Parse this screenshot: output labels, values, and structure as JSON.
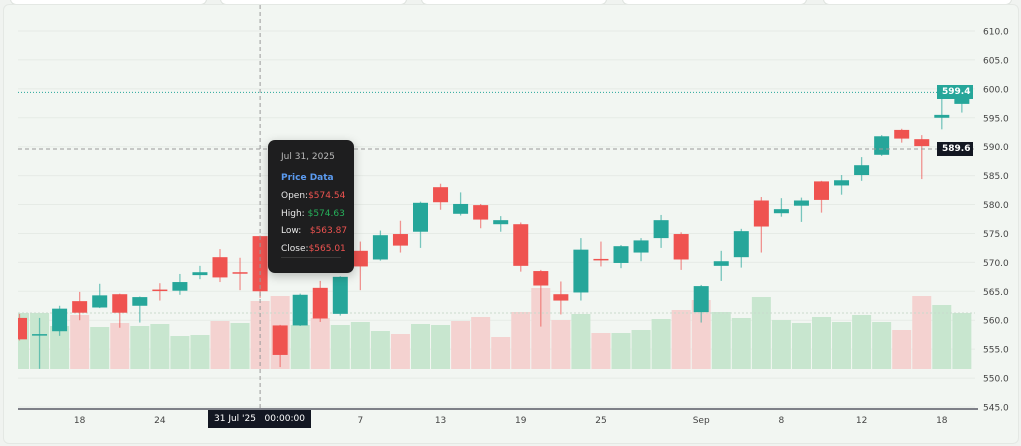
{
  "chart_data": {
    "type": "candlestick",
    "title": "",
    "ylim": [
      545,
      610
    ],
    "yticks": [
      545,
      550,
      555,
      560,
      565,
      570,
      575,
      580,
      585,
      590,
      595,
      600,
      605,
      610
    ],
    "grid": true,
    "xticks": [
      {
        "label": "18",
        "date": "2025-07-18"
      },
      {
        "label": "24",
        "date": "2025-07-24"
      },
      {
        "label": "7",
        "date": "2025-08-07"
      },
      {
        "label": "13",
        "date": "2025-08-13"
      },
      {
        "label": "19",
        "date": "2025-08-19"
      },
      {
        "label": "25",
        "date": "2025-08-25"
      },
      {
        "label": "Sep",
        "date": "2025-09-02"
      },
      {
        "label": "8",
        "date": "2025-09-08"
      },
      {
        "label": "12",
        "date": "2025-09-12"
      },
      {
        "label": "18",
        "date": "2025-09-18"
      }
    ],
    "columns": [
      "date",
      "open",
      "high",
      "low",
      "close",
      "volume_relative",
      "volume_color"
    ],
    "candles": [
      [
        "2025-07-15",
        560.4,
        561.1,
        556.5,
        556.7,
        56,
        "up"
      ],
      [
        "2025-07-16",
        557.5,
        560.4,
        551.6,
        557.6,
        56,
        "up"
      ],
      [
        "2025-07-17",
        558.1,
        562.5,
        557.3,
        562.0,
        43,
        "up"
      ],
      [
        "2025-07-18",
        563.3,
        564.9,
        560.0,
        561.3,
        54,
        "down"
      ],
      [
        "2025-07-21",
        562.2,
        566.3,
        562.1,
        564.3,
        42,
        "up"
      ],
      [
        "2025-07-22",
        564.5,
        564.6,
        558.7,
        561.3,
        46,
        "down"
      ],
      [
        "2025-07-23",
        562.5,
        564.1,
        559.6,
        564.0,
        43,
        "up"
      ],
      [
        "2025-07-24",
        565.3,
        566.4,
        563.4,
        565.1,
        45,
        "up"
      ],
      [
        "2025-07-25",
        565.1,
        568.0,
        564.4,
        566.6,
        33,
        "up"
      ],
      [
        "2025-07-28",
        567.8,
        569.4,
        567.1,
        568.3,
        34,
        "up"
      ],
      [
        "2025-07-29",
        570.9,
        572.3,
        566.6,
        567.4,
        48,
        "down"
      ],
      [
        "2025-07-30",
        568.3,
        570.8,
        565.2,
        568.1,
        46,
        "up"
      ],
      [
        "2025-07-31",
        574.54,
        574.63,
        563.87,
        565.01,
        68,
        "down"
      ],
      [
        "2025-08-01",
        559.1,
        559.2,
        551.9,
        554.0,
        73,
        "down"
      ],
      [
        "2025-08-04",
        559.1,
        564.6,
        559.0,
        564.4,
        44,
        "up"
      ],
      [
        "2025-08-05",
        565.6,
        566.8,
        559.7,
        560.3,
        51,
        "down"
      ],
      [
        "2025-08-06",
        561.1,
        567.6,
        560.8,
        567.5,
        44,
        "up"
      ],
      [
        "2025-08-07",
        572.0,
        573.6,
        565.2,
        569.3,
        47,
        "up"
      ],
      [
        "2025-08-08",
        570.5,
        575.5,
        570.3,
        574.7,
        38,
        "up"
      ],
      [
        "2025-08-11",
        574.9,
        577.2,
        571.7,
        572.9,
        35,
        "down"
      ],
      [
        "2025-08-12",
        575.3,
        580.5,
        572.5,
        580.3,
        45,
        "up"
      ],
      [
        "2025-08-13",
        583.0,
        583.6,
        579.1,
        580.4,
        44,
        "up"
      ],
      [
        "2025-08-14",
        578.4,
        582.1,
        578.1,
        580.1,
        48,
        "down"
      ],
      [
        "2025-08-15",
        579.9,
        580.1,
        575.9,
        577.4,
        52,
        "down"
      ],
      [
        "2025-08-18",
        576.6,
        578.0,
        575.3,
        577.3,
        32,
        "down"
      ],
      [
        "2025-08-19",
        576.6,
        576.9,
        568.4,
        569.4,
        57,
        "down"
      ],
      [
        "2025-08-20",
        568.5,
        568.7,
        558.9,
        566.0,
        81,
        "down"
      ],
      [
        "2025-08-21",
        564.5,
        566.7,
        561.0,
        563.4,
        49,
        "down"
      ],
      [
        "2025-08-22",
        564.8,
        574.2,
        563.4,
        572.2,
        55,
        "up"
      ],
      [
        "2025-08-25",
        570.6,
        573.6,
        569.3,
        570.5,
        36,
        "down"
      ],
      [
        "2025-08-26",
        569.9,
        573.0,
        569.0,
        572.8,
        36,
        "up"
      ],
      [
        "2025-08-27",
        571.7,
        574.2,
        570.2,
        573.8,
        39,
        "up"
      ],
      [
        "2025-08-28",
        574.2,
        578.2,
        572.5,
        577.3,
        50,
        "up"
      ],
      [
        "2025-08-29",
        574.9,
        575.2,
        568.7,
        570.5,
        59,
        "down"
      ],
      [
        "2025-09-02",
        561.4,
        566.1,
        559.6,
        565.9,
        69,
        "down"
      ],
      [
        "2025-09-03",
        569.4,
        572.0,
        566.8,
        570.2,
        57,
        "up"
      ],
      [
        "2025-09-04",
        570.9,
        575.8,
        569.1,
        575.4,
        51,
        "up"
      ],
      [
        "2025-09-05",
        580.7,
        581.3,
        571.7,
        576.2,
        72,
        "up"
      ],
      [
        "2025-09-08",
        578.5,
        581.1,
        577.9,
        579.2,
        49,
        "up"
      ],
      [
        "2025-09-09",
        579.8,
        581.2,
        577.0,
        580.7,
        46,
        "up"
      ],
      [
        "2025-09-10",
        584.0,
        584.1,
        578.6,
        580.8,
        52,
        "up"
      ],
      [
        "2025-09-11",
        583.3,
        585.1,
        581.7,
        584.2,
        47,
        "up"
      ],
      [
        "2025-09-12",
        585.1,
        588.2,
        584.1,
        586.8,
        54,
        "up"
      ],
      [
        "2025-09-15",
        588.6,
        592.0,
        588.4,
        591.8,
        47,
        "up"
      ],
      [
        "2025-09-16",
        592.9,
        593.1,
        590.7,
        591.4,
        39,
        "down"
      ],
      [
        "2025-09-17",
        591.3,
        592.0,
        584.4,
        590.1,
        73,
        "down"
      ],
      [
        "2025-09-18",
        595.0,
        598.4,
        593.0,
        595.5,
        64,
        "up"
      ],
      [
        "2025-09-19",
        597.4,
        600.3,
        595.9,
        599.4,
        56,
        "up"
      ]
    ],
    "last_price": {
      "value": 599.4,
      "label": "599.4"
    },
    "crosshair": {
      "date": "2025-07-31",
      "price": 589.6,
      "price_label": "589.6",
      "time_label": "31 Jul '25   00:00:00"
    },
    "colors": {
      "up": "#26a69a",
      "down": "#ef5350",
      "vol_up": "#c8e6cf",
      "vol_down": "#f4d2d0",
      "bg": "#f2f6f2"
    }
  },
  "tooltip": {
    "date": "Jul 31, 2025",
    "header": "Price Data",
    "open_label": "Open:",
    "open": "$574.54",
    "high_label": "High:",
    "high": "$574.63",
    "low_label": "Low:",
    "low": "$563.87",
    "close_label": "Close:",
    "close": "$565.01"
  }
}
